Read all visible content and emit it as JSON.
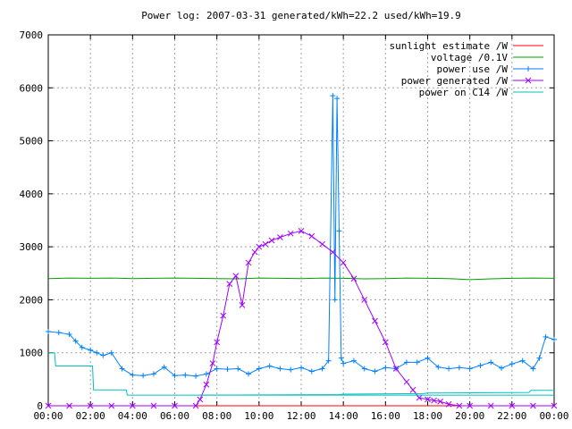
{
  "chart_data": {
    "type": "line",
    "title": "Power log: 2007-03-31 generated/kWh=22.2 used/kWh=19.9",
    "xlabel": "",
    "ylabel": "",
    "xlim": [
      0,
      24
    ],
    "ylim": [
      0,
      7000
    ],
    "x_ticks": [
      "00:00",
      "02:00",
      "04:00",
      "06:00",
      "08:00",
      "10:00",
      "12:00",
      "14:00",
      "16:00",
      "18:00",
      "20:00",
      "22:00",
      "00:00"
    ],
    "y_ticks": [
      "0",
      "1000",
      "2000",
      "3000",
      "4000",
      "5000",
      "6000",
      "7000"
    ],
    "grid": true,
    "legend_position": "top-right",
    "series": [
      {
        "name": "sunlight estimate /W",
        "color": "#ff0000",
        "marker": "none",
        "x": [
          0,
          24
        ],
        "y": [
          0,
          0
        ]
      },
      {
        "name": "voltage /0.1V",
        "color": "#00a000",
        "marker": "none",
        "x": [
          0,
          1,
          2,
          3,
          4,
          5,
          6,
          7,
          8,
          9,
          10,
          11,
          12,
          13,
          14,
          15,
          16,
          17,
          18,
          19,
          20,
          21,
          22,
          23,
          24
        ],
        "y": [
          2400,
          2410,
          2405,
          2410,
          2400,
          2405,
          2410,
          2405,
          2400,
          2395,
          2410,
          2405,
          2400,
          2410,
          2405,
          2395,
          2400,
          2410,
          2405,
          2400,
          2380,
          2395,
          2405,
          2410,
          2405
        ]
      },
      {
        "name": "power use /W",
        "color": "#0080ff",
        "marker": "plus",
        "x": [
          0,
          0.5,
          1,
          1.3,
          1.6,
          2,
          2.3,
          2.6,
          3,
          3.5,
          4,
          4.5,
          5,
          5.5,
          6,
          6.5,
          7,
          7.5,
          8,
          8.5,
          9,
          9.5,
          10,
          10.5,
          11,
          11.5,
          12,
          12.5,
          13,
          13.3,
          13.5,
          13.6,
          13.7,
          13.8,
          13.9,
          14,
          14.5,
          15,
          15.5,
          16,
          16.5,
          17,
          17.5,
          18,
          18.5,
          19,
          19.5,
          20,
          20.5,
          21,
          21.5,
          22,
          22.5,
          23,
          23.3,
          23.6,
          24
        ],
        "y": [
          1400,
          1380,
          1350,
          1220,
          1100,
          1050,
          1000,
          950,
          1000,
          700,
          580,
          570,
          600,
          730,
          570,
          580,
          560,
          600,
          700,
          690,
          700,
          600,
          700,
          750,
          700,
          680,
          720,
          650,
          700,
          850,
          5850,
          2000,
          5800,
          3300,
          900,
          800,
          850,
          700,
          650,
          720,
          700,
          820,
          820,
          900,
          730,
          700,
          720,
          700,
          760,
          820,
          710,
          790,
          850,
          700,
          900,
          1300,
          1250
        ]
      },
      {
        "name": "power generated /W",
        "color": "#a000ff",
        "marker": "x",
        "x": [
          0,
          1,
          2,
          3,
          4,
          5,
          6,
          7,
          7.2,
          7.5,
          7.8,
          8,
          8.3,
          8.6,
          8.9,
          9.2,
          9.5,
          9.8,
          10,
          10.3,
          10.6,
          11,
          11.5,
          12,
          12.5,
          13,
          13.5,
          14,
          14.5,
          15,
          15.5,
          16,
          16.5,
          17,
          17.3,
          17.6,
          18,
          18.3,
          18.6,
          19,
          19.5,
          20,
          21,
          22,
          23,
          24
        ],
        "y": [
          0,
          0,
          0,
          0,
          0,
          0,
          0,
          0,
          120,
          400,
          800,
          1200,
          1700,
          2300,
          2450,
          1900,
          2700,
          2900,
          3000,
          3050,
          3120,
          3180,
          3250,
          3300,
          3200,
          3050,
          2900,
          2700,
          2400,
          2000,
          1600,
          1200,
          700,
          450,
          300,
          150,
          120,
          100,
          80,
          30,
          0,
          0,
          0,
          0,
          0,
          0
        ]
      },
      {
        "name": "power on C14 /W",
        "color": "#00c0c0",
        "marker": "none",
        "x": [
          0,
          0.3,
          0.35,
          2.1,
          2.15,
          3.7,
          3.75,
          24
        ],
        "y": [
          1000,
          1000,
          750,
          750,
          300,
          300,
          200,
          200
        ],
        "extra_x": [
          7.2,
          13.8,
          14,
          17.8,
          18,
          22.8,
          22.9,
          24
        ],
        "extra_y": [
          200,
          210,
          220,
          230,
          240,
          250,
          290,
          290
        ]
      }
    ]
  }
}
